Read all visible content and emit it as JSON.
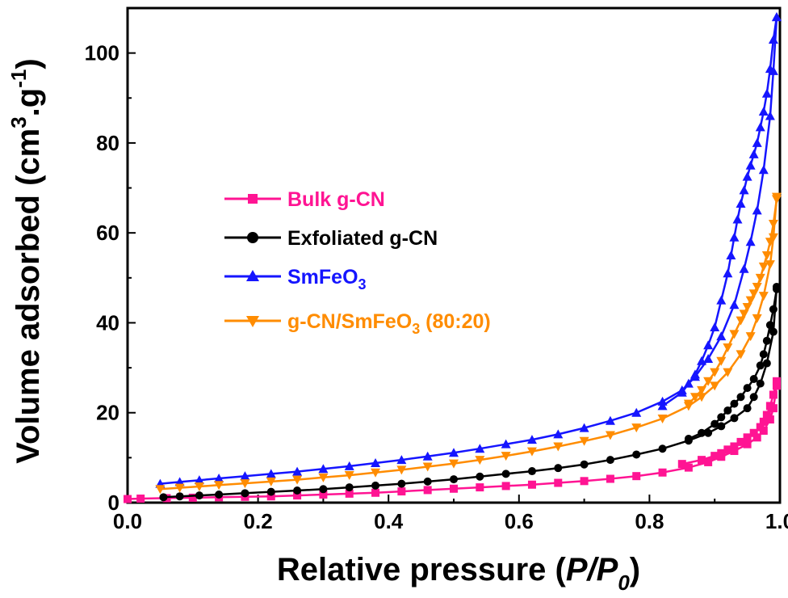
{
  "chart_data": {
    "type": "line",
    "xlabel_main": "Relative pressure (",
    "xlabel_italic": "P/P",
    "xlabel_sub": "0",
    "xlabel_close": ")",
    "ylabel_main": "Volume adsorbed (cm",
    "ylabel_sup": "3",
    "ylabel_mid": ".g",
    "ylabel_sup2": "-1",
    "ylabel_close": ")",
    "xlim": [
      0.0,
      1.0
    ],
    "ylim": [
      0,
      110
    ],
    "xticks": [
      0.0,
      0.2,
      0.4,
      0.6,
      0.8,
      1.0
    ],
    "xtick_labels": [
      "0.0",
      "0.2",
      "0.4",
      "0.6",
      "0.8",
      "1.0"
    ],
    "yticks": [
      0,
      20,
      40,
      60,
      80,
      100
    ],
    "ytick_labels": [
      "0",
      "20",
      "40",
      "60",
      "80",
      "100"
    ],
    "legend_placement": "center-left",
    "series": [
      {
        "name": "Bulk g-CN",
        "name_sub": "",
        "name_tail": "",
        "color": "#ff1493",
        "marker": "square",
        "adsorption": {
          "x": [
            0.0,
            0.02,
            0.06,
            0.1,
            0.14,
            0.18,
            0.22,
            0.26,
            0.3,
            0.34,
            0.38,
            0.42,
            0.46,
            0.5,
            0.54,
            0.58,
            0.62,
            0.66,
            0.7,
            0.74,
            0.78,
            0.82,
            0.86,
            0.89,
            0.91,
            0.93,
            0.95,
            0.965,
            0.975,
            0.985,
            0.99,
            0.995
          ],
          "y": [
            0.8,
            0.9,
            1.0,
            1.1,
            1.2,
            1.3,
            1.4,
            1.6,
            1.8,
            2.0,
            2.2,
            2.5,
            2.8,
            3.1,
            3.4,
            3.7,
            4.0,
            4.4,
            4.8,
            5.3,
            5.9,
            6.7,
            7.8,
            9.0,
            10.2,
            11.5,
            13.0,
            14.5,
            16.0,
            18.5,
            21.0,
            26.0
          ]
        },
        "desorption": {
          "x": [
            0.995,
            0.99,
            0.985,
            0.98,
            0.975,
            0.97,
            0.96,
            0.95,
            0.94,
            0.93,
            0.92,
            0.91,
            0.9,
            0.88,
            0.85
          ],
          "y": [
            27.0,
            24.0,
            21.5,
            19.5,
            18.0,
            16.8,
            15.5,
            14.5,
            13.5,
            12.5,
            11.8,
            11.0,
            10.4,
            9.5,
            8.6
          ]
        }
      },
      {
        "name": "Exfoliated g-CN",
        "name_sub": "",
        "name_tail": "",
        "color": "#000000",
        "marker": "circle",
        "adsorption": {
          "x": [
            0.055,
            0.08,
            0.11,
            0.14,
            0.18,
            0.22,
            0.26,
            0.3,
            0.34,
            0.38,
            0.42,
            0.46,
            0.5,
            0.54,
            0.58,
            0.62,
            0.66,
            0.7,
            0.74,
            0.78,
            0.82,
            0.86,
            0.89,
            0.91,
            0.93,
            0.95,
            0.96,
            0.97,
            0.98,
            0.99,
            0.995
          ],
          "y": [
            1.2,
            1.4,
            1.6,
            1.8,
            2.1,
            2.4,
            2.7,
            3.0,
            3.4,
            3.8,
            4.2,
            4.7,
            5.2,
            5.8,
            6.4,
            7.0,
            7.7,
            8.5,
            9.5,
            10.7,
            12.0,
            13.8,
            15.5,
            17.0,
            18.8,
            21.0,
            23.5,
            26.5,
            31.0,
            38.0,
            48.0
          ]
        },
        "desorption": {
          "x": [
            0.995,
            0.99,
            0.985,
            0.98,
            0.975,
            0.97,
            0.96,
            0.95,
            0.94,
            0.93,
            0.92,
            0.91,
            0.9,
            0.88,
            0.86
          ],
          "y": [
            47.5,
            43.0,
            39.5,
            36.0,
            33.0,
            30.5,
            27.5,
            25.5,
            23.5,
            22.0,
            20.5,
            19.0,
            17.5,
            15.5,
            14.2
          ]
        }
      },
      {
        "name": "SmFeO",
        "name_sub": "3",
        "name_tail": "",
        "color": "#1515ff",
        "marker": "triangle-up",
        "adsorption": {
          "x": [
            0.05,
            0.08,
            0.11,
            0.14,
            0.18,
            0.22,
            0.26,
            0.3,
            0.34,
            0.38,
            0.42,
            0.46,
            0.5,
            0.54,
            0.58,
            0.62,
            0.66,
            0.7,
            0.74,
            0.78,
            0.82,
            0.85,
            0.87,
            0.89,
            0.91,
            0.93,
            0.945,
            0.955,
            0.965,
            0.975,
            0.985,
            0.99,
            0.995
          ],
          "y": [
            4.2,
            4.6,
            5.0,
            5.4,
            5.9,
            6.4,
            6.9,
            7.5,
            8.1,
            8.8,
            9.5,
            10.3,
            11.1,
            12.0,
            13.0,
            14.0,
            15.2,
            16.6,
            18.2,
            20.0,
            22.5,
            25.0,
            28.0,
            32.0,
            37.0,
            44.0,
            52.0,
            58.0,
            65.0,
            74.0,
            86.0,
            96.0,
            108.0
          ]
        },
        "desorption": {
          "x": [
            0.995,
            0.99,
            0.985,
            0.98,
            0.975,
            0.97,
            0.965,
            0.96,
            0.955,
            0.95,
            0.945,
            0.94,
            0.935,
            0.93,
            0.925,
            0.92,
            0.91,
            0.9,
            0.89,
            0.88,
            0.87,
            0.86,
            0.85,
            0.82
          ],
          "y": [
            108.0,
            103.0,
            96.5,
            91.0,
            87.0,
            83.5,
            80.0,
            77.5,
            75.0,
            72.5,
            69.5,
            66.5,
            63.0,
            59.0,
            55.0,
            51.0,
            45.0,
            39.0,
            35.0,
            31.5,
            28.5,
            26.5,
            24.5,
            21.5
          ]
        }
      },
      {
        "name": "g-CN/SmFeO",
        "name_sub": "3",
        "name_tail": " (80:20)",
        "color": "#ff8c00",
        "marker": "triangle-down",
        "adsorption": {
          "x": [
            0.05,
            0.08,
            0.11,
            0.14,
            0.18,
            0.22,
            0.26,
            0.3,
            0.34,
            0.38,
            0.42,
            0.46,
            0.5,
            0.54,
            0.58,
            0.62,
            0.66,
            0.7,
            0.74,
            0.78,
            0.82,
            0.86,
            0.88,
            0.9,
            0.92,
            0.94,
            0.955,
            0.965,
            0.975,
            0.985,
            0.99,
            0.995
          ],
          "y": [
            3.0,
            3.3,
            3.6,
            3.9,
            4.3,
            4.7,
            5.1,
            5.6,
            6.1,
            6.7,
            7.3,
            8.0,
            8.7,
            9.5,
            10.4,
            11.4,
            12.5,
            13.7,
            15.0,
            16.7,
            18.7,
            21.5,
            23.5,
            26.0,
            29.0,
            33.0,
            37.0,
            41.0,
            46.0,
            53.0,
            59.0,
            68.0
          ]
        },
        "desorption": {
          "x": [
            0.995,
            0.99,
            0.985,
            0.98,
            0.975,
            0.97,
            0.965,
            0.96,
            0.955,
            0.95,
            0.945,
            0.94,
            0.93,
            0.92,
            0.91,
            0.9,
            0.89,
            0.88,
            0.87,
            0.86
          ],
          "y": [
            67.5,
            62.0,
            58.0,
            55.0,
            52.5,
            50.0,
            48.0,
            46.5,
            45.0,
            43.5,
            42.0,
            40.5,
            37.5,
            34.5,
            31.5,
            29.0,
            27.0,
            25.0,
            23.5,
            22.0
          ]
        }
      }
    ]
  }
}
